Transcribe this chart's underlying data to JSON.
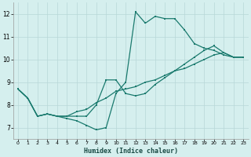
{
  "xlabel": "Humidex (Indice chaleur)",
  "bg_color": "#d5efee",
  "grid_color": "#b8d8d8",
  "line_color": "#1a7a6e",
  "xlim": [
    -0.5,
    23.5
  ],
  "ylim": [
    6.5,
    12.5
  ],
  "xticks": [
    0,
    1,
    2,
    3,
    4,
    5,
    6,
    7,
    8,
    9,
    10,
    11,
    12,
    13,
    14,
    15,
    16,
    17,
    18,
    19,
    20,
    21,
    22,
    23
  ],
  "yticks": [
    7,
    8,
    9,
    10,
    11,
    12
  ],
  "line1_x": [
    0,
    1,
    2,
    3,
    4,
    5,
    6,
    7,
    8,
    9,
    10,
    11,
    12,
    13,
    14,
    15,
    16,
    17,
    18,
    19,
    20,
    21,
    22,
    23
  ],
  "line1_y": [
    8.7,
    8.3,
    7.5,
    7.6,
    7.5,
    7.4,
    7.3,
    7.1,
    6.9,
    7.0,
    8.5,
    9.0,
    12.1,
    11.6,
    11.9,
    11.8,
    11.8,
    11.3,
    10.7,
    10.5,
    10.4,
    10.2,
    10.1,
    10.1
  ],
  "line2_x": [
    0,
    1,
    2,
    3,
    4,
    5,
    6,
    7,
    8,
    9,
    10,
    11,
    12,
    13,
    14,
    15,
    16,
    17,
    18,
    19,
    20,
    21,
    22,
    23
  ],
  "line2_y": [
    8.7,
    8.3,
    7.5,
    7.6,
    7.5,
    7.5,
    7.5,
    7.5,
    8.0,
    9.1,
    9.1,
    8.5,
    8.4,
    8.5,
    8.9,
    9.2,
    9.5,
    9.8,
    10.1,
    10.4,
    10.6,
    10.3,
    10.1,
    10.1
  ],
  "line3_x": [
    0,
    1,
    2,
    3,
    4,
    5,
    6,
    7,
    8,
    9,
    10,
    11,
    12,
    13,
    14,
    15,
    16,
    17,
    18,
    19,
    20,
    21,
    22,
    23
  ],
  "line3_y": [
    8.7,
    8.3,
    7.5,
    7.6,
    7.5,
    7.5,
    7.7,
    7.8,
    8.1,
    8.3,
    8.6,
    8.7,
    8.8,
    9.0,
    9.1,
    9.3,
    9.5,
    9.6,
    9.8,
    10.0,
    10.2,
    10.3,
    10.1,
    10.1
  ]
}
